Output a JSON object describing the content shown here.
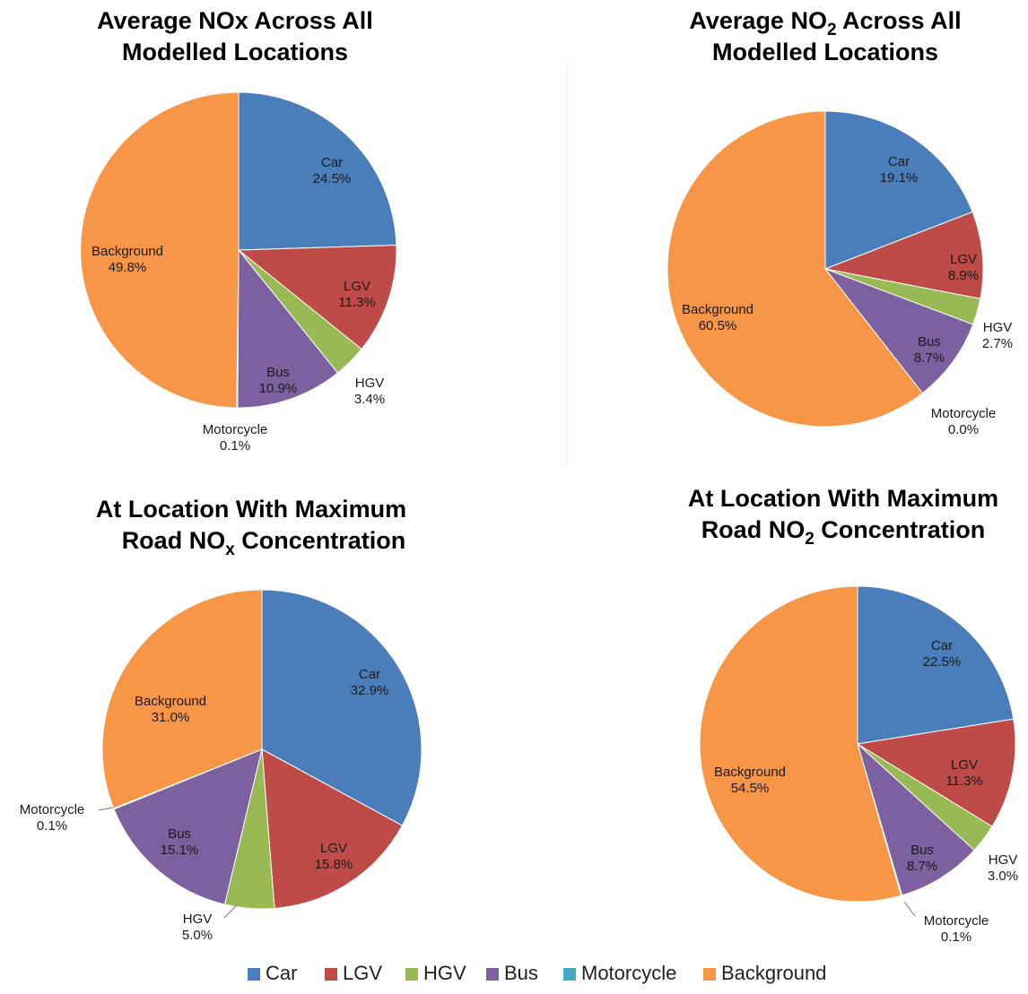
{
  "colors": {
    "Car": "#4a7ebb",
    "LGV": "#be4b48",
    "HGV": "#98b954",
    "Bus": "#7d60a0",
    "Motorcycle": "#46aac5",
    "Background": "#f79646"
  },
  "legend": [
    "Car",
    "LGV",
    "HGV",
    "Bus",
    "Motorcycle",
    "Background"
  ],
  "chart_data": [
    {
      "type": "pie",
      "title": "Average NOx Across All Modelled Locations",
      "title_lines": [
        "Average NOx Across All",
        "Modelled Locations"
      ],
      "slices": [
        {
          "label": "Car",
          "value": 24.5,
          "text": "24.5%"
        },
        {
          "label": "LGV",
          "value": 11.3,
          "text": "11.3%"
        },
        {
          "label": "HGV",
          "value": 3.4,
          "text": "3.4%"
        },
        {
          "label": "Bus",
          "value": 10.9,
          "text": "10.9%"
        },
        {
          "label": "Motorcycle",
          "value": 0.1,
          "text": "0.1%"
        },
        {
          "label": "Background",
          "value": 49.8,
          "text": "49.8%"
        }
      ]
    },
    {
      "type": "pie",
      "title": "Average NO2 Across All Modelled Locations",
      "title_lines": [
        "Average NO2 Across All",
        "Modelled Locations"
      ],
      "slices": [
        {
          "label": "Car",
          "value": 19.1,
          "text": "19.1%"
        },
        {
          "label": "LGV",
          "value": 8.9,
          "text": "8.9%"
        },
        {
          "label": "HGV",
          "value": 2.7,
          "text": "2.7%"
        },
        {
          "label": "Bus",
          "value": 8.7,
          "text": "8.7%"
        },
        {
          "label": "Motorcycle",
          "value": 0.0,
          "text": "0.0%"
        },
        {
          "label": "Background",
          "value": 60.5,
          "text": "60.5%"
        }
      ]
    },
    {
      "type": "pie",
      "title": "At Location With Maximum Road NOx Concentration",
      "title_lines": [
        "At Location With Maximum",
        "Road NOx Concentration"
      ],
      "slices": [
        {
          "label": "Car",
          "value": 32.9,
          "text": "32.9%"
        },
        {
          "label": "LGV",
          "value": 15.8,
          "text": "15.8%"
        },
        {
          "label": "HGV",
          "value": 5.0,
          "text": "5.0%"
        },
        {
          "label": "Bus",
          "value": 15.1,
          "text": "15.1%"
        },
        {
          "label": "Motorcycle",
          "value": 0.1,
          "text": "0.1%"
        },
        {
          "label": "Background",
          "value": 31.0,
          "text": "31.0%"
        }
      ]
    },
    {
      "type": "pie",
      "title": "At Location With Maximum Road NO2 Concentration",
      "title_lines": [
        "At Location With Maximum",
        "Road NO2 Concentration"
      ],
      "slices": [
        {
          "label": "Car",
          "value": 22.5,
          "text": "22.5%"
        },
        {
          "label": "LGV",
          "value": 11.3,
          "text": "11.3%"
        },
        {
          "label": "HGV",
          "value": 3.0,
          "text": "3.0%"
        },
        {
          "label": "Bus",
          "value": 8.7,
          "text": "8.7%"
        },
        {
          "label": "Motorcycle",
          "value": 0.1,
          "text": "0.1%"
        },
        {
          "label": "Background",
          "value": 54.5,
          "text": "54.5%"
        }
      ]
    }
  ]
}
